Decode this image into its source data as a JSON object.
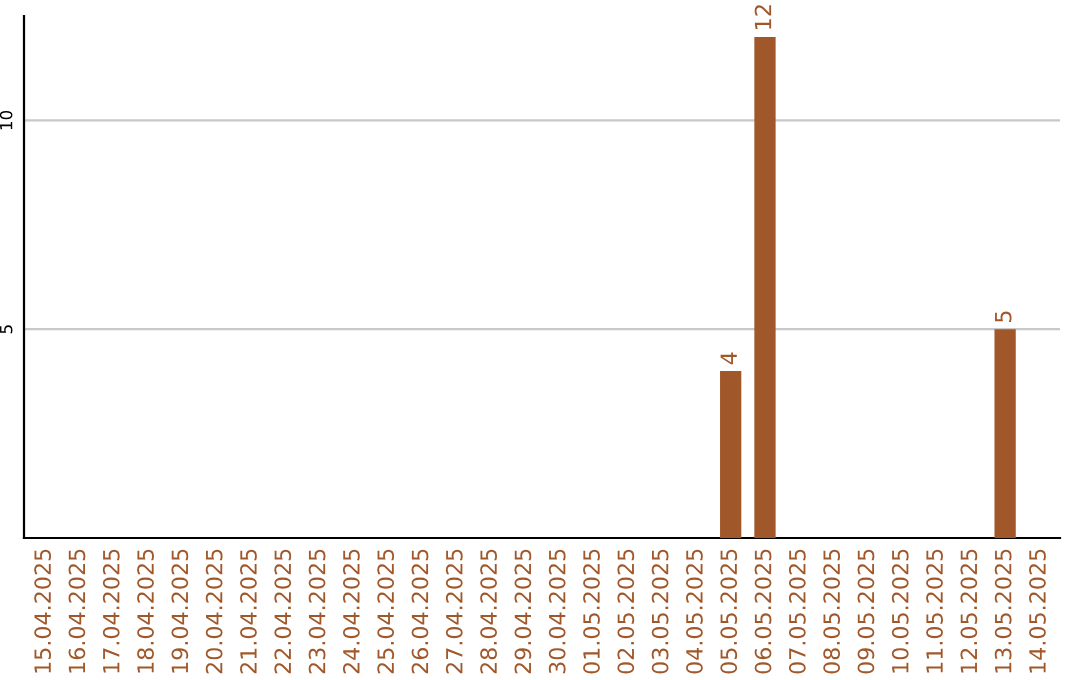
{
  "chart_data": {
    "type": "bar",
    "categories": [
      "15.04.2025",
      "16.04.2025",
      "17.04.2025",
      "18.04.2025",
      "19.04.2025",
      "20.04.2025",
      "21.04.2025",
      "22.04.2025",
      "23.04.2025",
      "24.04.2025",
      "25.04.2025",
      "26.04.2025",
      "27.04.2025",
      "28.04.2025",
      "29.04.2025",
      "30.04.2025",
      "01.05.2025",
      "02.05.2025",
      "03.05.2025",
      "04.05.2025",
      "05.05.2025",
      "06.05.2025",
      "07.05.2025",
      "08.05.2025",
      "09.05.2025",
      "10.05.2025",
      "11.05.2025",
      "12.05.2025",
      "13.05.2025",
      "14.05.2025"
    ],
    "values": [
      0,
      0,
      0,
      0,
      0,
      0,
      0,
      0,
      0,
      0,
      0,
      0,
      0,
      0,
      0,
      0,
      0,
      0,
      0,
      0,
      4,
      12,
      0,
      0,
      0,
      0,
      0,
      0,
      5,
      0
    ],
    "value_labels": [
      null,
      null,
      null,
      null,
      null,
      null,
      null,
      null,
      null,
      null,
      null,
      null,
      null,
      null,
      null,
      null,
      null,
      null,
      null,
      null,
      "4",
      "12",
      null,
      null,
      null,
      null,
      null,
      null,
      "5",
      null
    ],
    "color": "#a0582a",
    "ylim": [
      0,
      12.5
    ],
    "yticks": [
      5,
      10
    ],
    "grid": "y"
  }
}
